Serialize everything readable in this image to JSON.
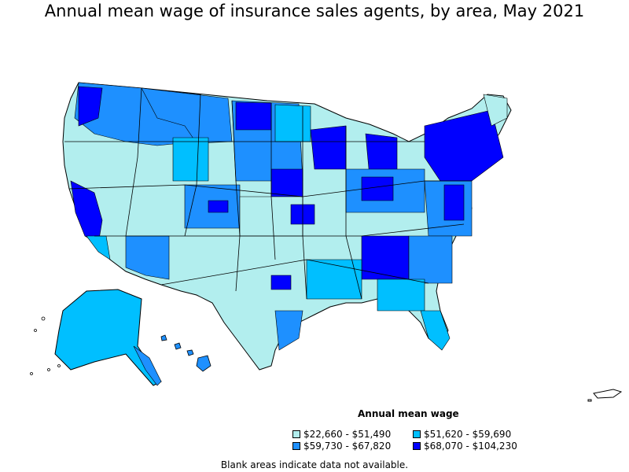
{
  "title": "Annual mean wage of insurance sales agents, by area, May 2021",
  "legend": {
    "title": "Annual mean wage",
    "items": [
      {
        "label": "$22,660 - $51,490",
        "color": "#b2eeee"
      },
      {
        "label": "$51,620 - $59,690",
        "color": "#00bfff"
      },
      {
        "label": "$59,730 - $67,820",
        "color": "#1e90ff"
      },
      {
        "label": "$68,070 - $104,230",
        "color": "#0000ff"
      }
    ]
  },
  "note": "Blank areas indicate data not available.",
  "colors": {
    "outline": "#000000",
    "background": "#ffffff"
  }
}
